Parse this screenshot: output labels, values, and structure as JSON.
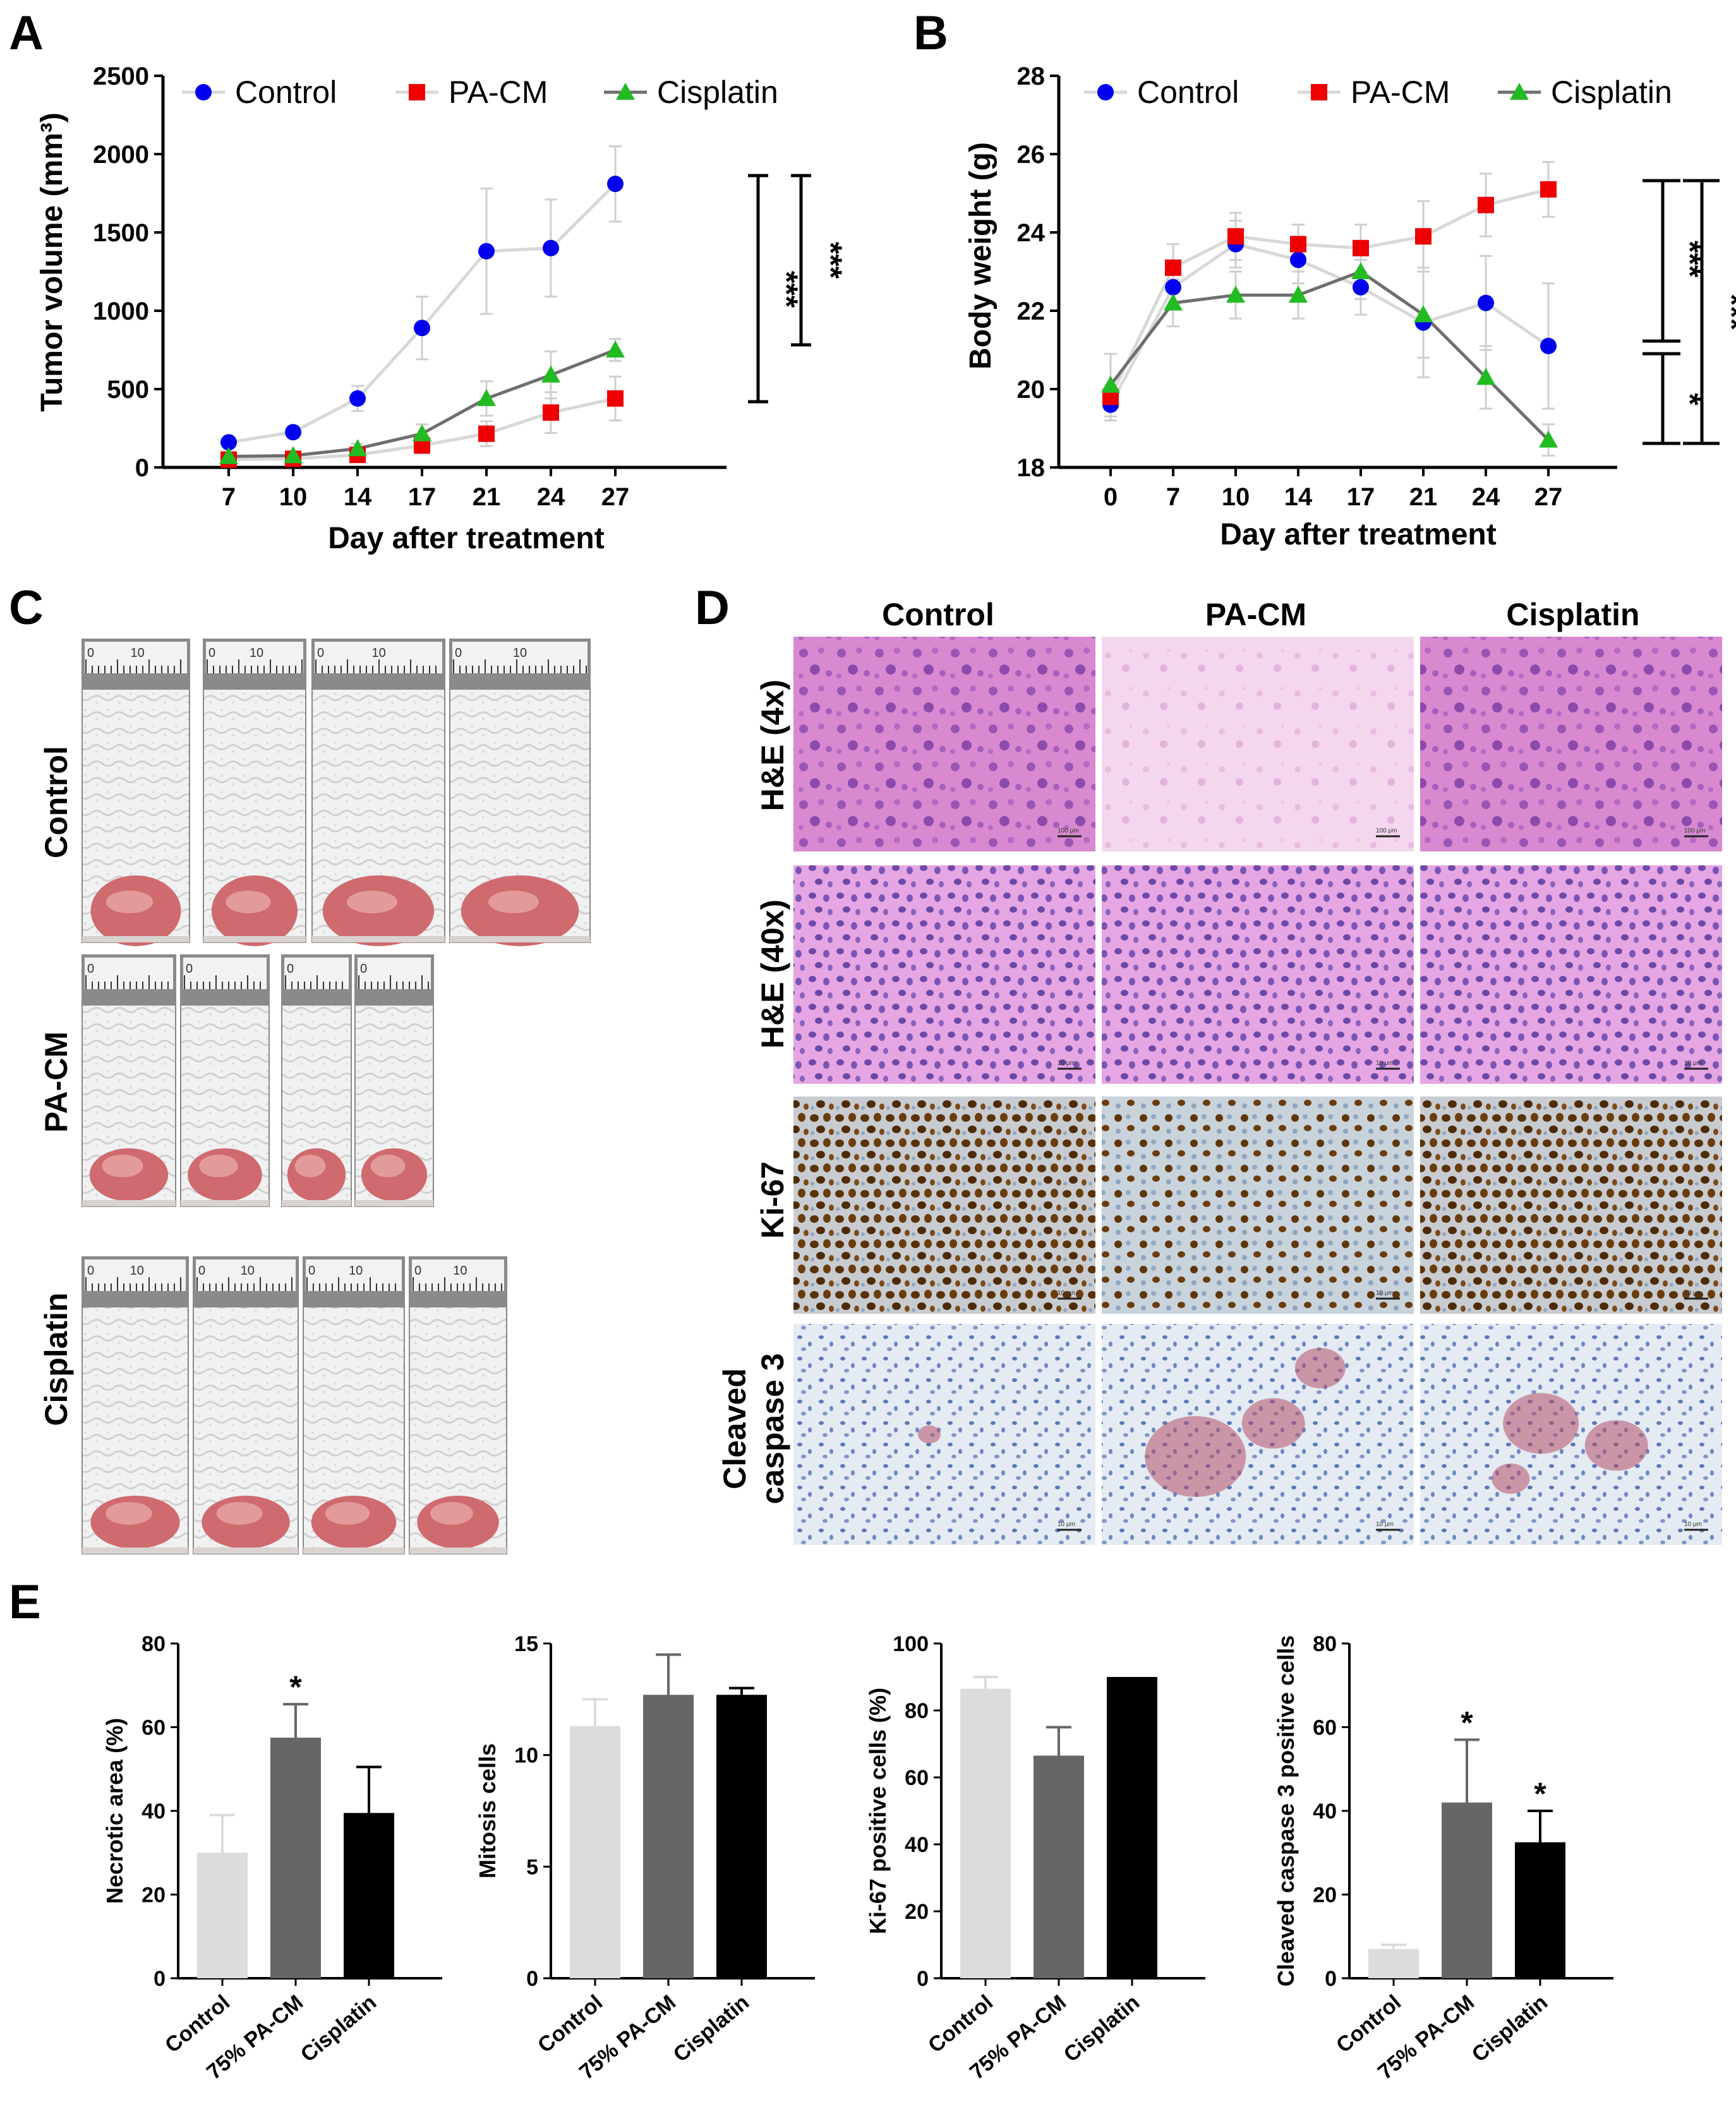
{
  "chart_data": [
    {
      "panel": "A",
      "type": "line",
      "xlabel": "Day after treatment",
      "ylabel": "Tumor volume (mm³)",
      "ylim": [
        0,
        2500
      ],
      "yticks": [
        "0",
        "500",
        "1000",
        "1500",
        "2000",
        "2500"
      ],
      "categories": [
        "7",
        "10",
        "14",
        "17",
        "21",
        "24",
        "27"
      ],
      "series": [
        {
          "name": "Control",
          "color": "#0000ee",
          "line_color": "#d8d8d8",
          "marker": "circle",
          "values": [
            160,
            225,
            440,
            890,
            1380,
            1400,
            1810
          ],
          "errors": [
            30,
            30,
            80,
            200,
            400,
            310,
            240
          ]
        },
        {
          "name": "PA-CM",
          "color": "#ee0000",
          "line_color": "#d8d8d8",
          "marker": "square",
          "values": [
            50,
            55,
            80,
            140,
            215,
            350,
            440
          ],
          "errors": [
            20,
            20,
            30,
            50,
            80,
            130,
            140
          ]
        },
        {
          "name": "Cisplatin",
          "color": "#22bb22",
          "line_color": "#6e6e6e",
          "marker": "triangle",
          "values": [
            70,
            75,
            120,
            215,
            440,
            590,
            750
          ],
          "errors": [
            20,
            20,
            30,
            60,
            110,
            150,
            70
          ]
        }
      ],
      "significance": [
        "***",
        "***"
      ]
    },
    {
      "panel": "B",
      "type": "line",
      "xlabel": "Day after treatment",
      "ylabel": "Body weight (g)",
      "ylim": [
        18,
        28
      ],
      "yticks": [
        "18",
        "20",
        "22",
        "24",
        "26",
        "28"
      ],
      "categories": [
        "0",
        "7",
        "10",
        "14",
        "17",
        "21",
        "24",
        "27"
      ],
      "series": [
        {
          "name": "Control",
          "color": "#0000ee",
          "line_color": "#d8d8d8",
          "marker": "circle",
          "values": [
            19.6,
            22.6,
            23.7,
            23.3,
            22.6,
            21.7,
            22.2,
            21.1
          ],
          "errors": [
            0.4,
            0.5,
            0.6,
            0.6,
            0.7,
            1.4,
            1.2,
            1.6
          ]
        },
        {
          "name": "PA-CM",
          "color": "#ee0000",
          "line_color": "#d8d8d8",
          "marker": "square",
          "values": [
            19.8,
            23.1,
            23.9,
            23.7,
            23.6,
            23.9,
            24.7,
            25.1
          ],
          "errors": [
            0.3,
            0.6,
            0.6,
            0.5,
            0.6,
            0.9,
            0.8,
            0.7
          ]
        },
        {
          "name": "Cisplatin",
          "color": "#22bb22",
          "line_color": "#6e6e6e",
          "marker": "triangle",
          "values": [
            20.1,
            22.2,
            22.4,
            22.4,
            23.0,
            21.9,
            20.3,
            18.7
          ],
          "errors": [
            0.8,
            0.6,
            0.6,
            0.6,
            0.7,
            1.1,
            0.8,
            0.4
          ]
        }
      ],
      "significance": [
        "***",
        "*",
        "***"
      ]
    },
    {
      "panel": "E1",
      "type": "bar",
      "ylabel": "Necrotic area (%)",
      "ylim": [
        0,
        80
      ],
      "yticks": [
        "0",
        "20",
        "40",
        "60",
        "80"
      ],
      "categories": [
        "Control",
        "75% PA-CM",
        "Cisplatin"
      ],
      "values": [
        30,
        57.5,
        39.5
      ],
      "errors": [
        9,
        8,
        11
      ],
      "colors": [
        "#dcdcdc",
        "#666666",
        "#000000"
      ],
      "stars": [
        "",
        "*",
        ""
      ]
    },
    {
      "panel": "E2",
      "type": "bar",
      "ylabel": "Mitosis cells",
      "ylim": [
        0,
        15
      ],
      "yticks": [
        "0",
        "5",
        "10",
        "15"
      ],
      "categories": [
        "Control",
        "75% PA-CM",
        "Cisplatin"
      ],
      "values": [
        11.3,
        12.7,
        12.7
      ],
      "errors": [
        1.2,
        1.8,
        0.3
      ],
      "colors": [
        "#dcdcdc",
        "#666666",
        "#000000"
      ],
      "stars": [
        "",
        "",
        ""
      ]
    },
    {
      "panel": "E3",
      "type": "bar",
      "ylabel": "Ki-67 positive cells (%)",
      "ylim": [
        0,
        100
      ],
      "yticks": [
        "0",
        "20",
        "40",
        "60",
        "80",
        "100"
      ],
      "categories": [
        "Control",
        "75% PA-CM",
        "Cisplatin"
      ],
      "values": [
        86.5,
        66.5,
        90
      ],
      "errors": [
        3.5,
        8.5,
        0
      ],
      "colors": [
        "#dcdcdc",
        "#666666",
        "#000000"
      ],
      "stars": [
        "",
        "",
        ""
      ]
    },
    {
      "panel": "E4",
      "type": "bar",
      "ylabel": "Cleaved caspase 3 positive cells",
      "ylim": [
        0,
        80
      ],
      "yticks": [
        "0",
        "20",
        "40",
        "60",
        "80"
      ],
      "categories": [
        "Control",
        "75% PA-CM",
        "Cisplatin"
      ],
      "values": [
        7,
        42,
        32.5
      ],
      "errors": [
        1,
        15,
        7.5
      ],
      "colors": [
        "#dcdcdc",
        "#666666",
        "#000000"
      ],
      "stars": [
        "",
        "*",
        "*"
      ]
    }
  ],
  "panels": {
    "a": "A",
    "b": "B",
    "c": "C",
    "d": "D",
    "e": "E"
  },
  "panel_c": {
    "rows": [
      "Control",
      "PA-CM",
      "Cisplatin"
    ],
    "ruler_label": "10",
    "ruler_zero": "0"
  },
  "panel_d": {
    "columns": [
      "Control",
      "PA-CM",
      "Cisplatin"
    ],
    "rows": [
      "H&E (4x)",
      "H&E (40x)",
      "Ki-67"
    ],
    "last_row": [
      "Cleaved",
      "caspase 3"
    ],
    "scale_4x": "100 μm",
    "scale_40x": "10 μm"
  }
}
